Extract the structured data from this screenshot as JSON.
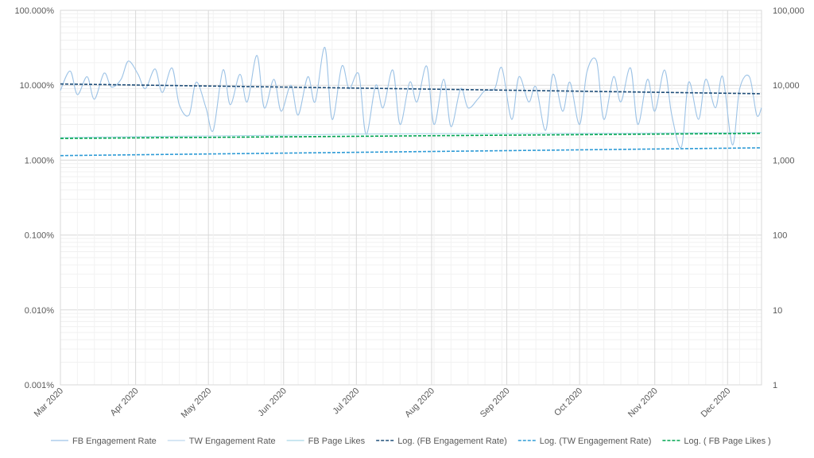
{
  "chart_data": {
    "type": "line",
    "title": "",
    "grid": true,
    "legend_position": "bottom",
    "x_start": "2020-03-01",
    "x_end": "2020-12-15",
    "x_ticks": [
      "Mar 2020",
      "Apr 2020",
      "May 2020",
      "Jun 2020",
      "Jul 2020",
      "Aug 2020",
      "Sep 2020",
      "Oct 2020",
      "Nov 2020",
      "Dec 2020"
    ],
    "y_left": {
      "scale": "log",
      "ylim": [
        1e-05,
        1
      ],
      "tick_values": [
        1,
        0.1,
        0.01,
        0.001,
        0.0001,
        1e-05
      ],
      "tick_labels": [
        "100.000%",
        "10.000%",
        "1.000%",
        "0.100%",
        "0.010%",
        "0.001%"
      ]
    },
    "y_right": {
      "scale": "log",
      "ylim": [
        1,
        100000
      ],
      "tick_values": [
        100000,
        10000,
        1000,
        100,
        10,
        1
      ],
      "tick_labels": [
        "100,000",
        "10,000",
        "1,000",
        "100",
        "10",
        "1"
      ]
    },
    "series": [
      {
        "name": "FB Engagement Rate",
        "axis": "left",
        "color": "#9dc3e6",
        "style": "solid",
        "x": [
          "2020-03-01",
          "2020-03-05",
          "2020-03-08",
          "2020-03-12",
          "2020-03-15",
          "2020-03-19",
          "2020-03-22",
          "2020-03-26",
          "2020-03-29",
          "2020-04-02",
          "2020-04-05",
          "2020-04-09",
          "2020-04-12",
          "2020-04-16",
          "2020-04-19",
          "2020-04-23",
          "2020-04-26",
          "2020-04-30",
          "2020-05-03",
          "2020-05-07",
          "2020-05-10",
          "2020-05-14",
          "2020-05-17",
          "2020-05-21",
          "2020-05-24",
          "2020-05-28",
          "2020-05-31",
          "2020-06-04",
          "2020-06-07",
          "2020-06-11",
          "2020-06-14",
          "2020-06-18",
          "2020-06-21",
          "2020-06-25",
          "2020-06-28",
          "2020-07-02",
          "2020-07-05",
          "2020-07-09",
          "2020-07-12",
          "2020-07-16",
          "2020-07-19",
          "2020-07-23",
          "2020-07-26",
          "2020-07-30",
          "2020-08-02",
          "2020-08-06",
          "2020-08-09",
          "2020-08-13",
          "2020-08-16",
          "2020-08-20",
          "2020-08-23",
          "2020-08-27",
          "2020-08-30",
          "2020-09-03",
          "2020-09-06",
          "2020-09-10",
          "2020-09-13",
          "2020-09-17",
          "2020-09-20",
          "2020-09-24",
          "2020-09-27",
          "2020-10-01",
          "2020-10-04",
          "2020-10-08",
          "2020-10-11",
          "2020-10-15",
          "2020-10-18",
          "2020-10-22",
          "2020-10-25",
          "2020-10-29",
          "2020-11-01",
          "2020-11-05",
          "2020-11-08",
          "2020-11-12",
          "2020-11-15",
          "2020-11-19",
          "2020-11-22",
          "2020-11-26",
          "2020-11-29",
          "2020-12-03",
          "2020-12-06",
          "2020-12-10",
          "2020-12-13",
          "2020-12-15"
        ],
        "values": [
          0.085,
          0.155,
          0.075,
          0.13,
          0.065,
          0.145,
          0.095,
          0.12,
          0.21,
          0.14,
          0.09,
          0.165,
          0.08,
          0.17,
          0.055,
          0.04,
          0.11,
          0.05,
          0.025,
          0.16,
          0.055,
          0.14,
          0.06,
          0.25,
          0.05,
          0.12,
          0.045,
          0.1,
          0.04,
          0.13,
          0.06,
          0.32,
          0.035,
          0.18,
          0.09,
          0.14,
          0.022,
          0.1,
          0.05,
          0.16,
          0.03,
          0.11,
          0.06,
          0.18,
          0.03,
          0.12,
          0.028,
          0.09,
          0.05,
          0.065,
          0.085,
          0.09,
          0.17,
          0.035,
          0.13,
          0.06,
          0.095,
          0.025,
          0.14,
          0.045,
          0.11,
          0.03,
          0.15,
          0.21,
          0.035,
          0.13,
          0.06,
          0.17,
          0.03,
          0.12,
          0.045,
          0.16,
          0.04,
          0.015,
          0.11,
          0.035,
          0.12,
          0.05,
          0.13,
          0.016,
          0.09,
          0.13,
          0.04,
          0.05
        ]
      },
      {
        "name": "TW Engagement Rate",
        "axis": "left",
        "color": "#bdd7ee",
        "style": "solid",
        "x": [],
        "values": []
      },
      {
        "name": "FB Page Likes",
        "axis": "right",
        "color": "#a9d8e6",
        "style": "solid",
        "x": [
          "2020-03-01",
          "2020-04-01",
          "2020-05-01",
          "2020-06-01",
          "2020-07-01",
          "2020-08-01",
          "2020-09-01",
          "2020-10-01",
          "2020-11-01",
          "2020-12-01",
          "2020-12-15"
        ],
        "values": [
          2000,
          2060,
          2100,
          2150,
          2230,
          2250,
          2270,
          2280,
          2300,
          2320,
          2330
        ]
      },
      {
        "name": "Log. (FB Engagement Rate)",
        "axis": "left",
        "color": "#1f4e79",
        "style": "dashed",
        "trend": true,
        "x": [
          "2020-03-01",
          "2020-12-15"
        ],
        "values": [
          0.104,
          0.077
        ]
      },
      {
        "name": "Log. (TW Engagement Rate)",
        "axis": "left",
        "color": "#2e9bd6",
        "style": "dashed",
        "trend": true,
        "x": [
          "2020-03-01",
          "2020-12-15"
        ],
        "values": [
          0.0115,
          0.0146
        ]
      },
      {
        "name": "Log. ( FB Page Likes )",
        "axis": "right",
        "color": "#00a651",
        "style": "dashed",
        "trend": true,
        "x": [
          "2020-03-01",
          "2020-12-15"
        ],
        "values": [
          1950,
          2280
        ]
      }
    ]
  }
}
